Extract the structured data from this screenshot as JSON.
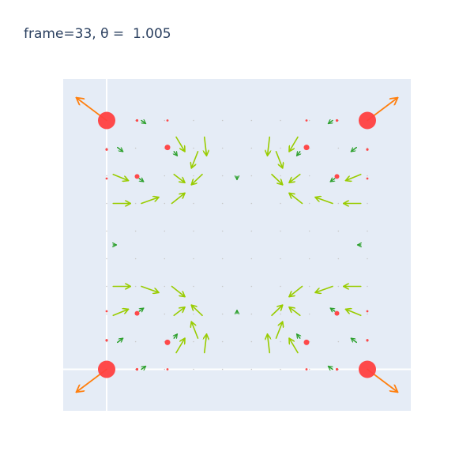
{
  "chart_data": {
    "type": "scatter",
    "title": "frame=33, θ =  1.005",
    "xlabel": "",
    "ylabel": "",
    "xlim": [
      -0.2,
      1.4
    ],
    "ylim": [
      -0.2,
      1.4
    ],
    "grid": false,
    "zero_lines": [
      0,
      1.2
    ],
    "legend": "none",
    "colors": {
      "plot_bg": "#e5ecf6",
      "points": "#ff4040",
      "corner_arrows": "#ff7f0e",
      "field_arrows_large": "#99cc00",
      "field_arrows_small": "#2ca02c",
      "grid_dots": "#c8c8c8"
    },
    "grid_points": {
      "x": [
        0,
        0.1333,
        0.2667,
        0.4,
        0.5333,
        0.6667,
        0.8,
        0.9333,
        1.0667,
        1.2
      ],
      "y": [
        0,
        0.1333,
        0.2667,
        0.4,
        0.5333,
        0.6667,
        0.8,
        0.9333,
        1.0667,
        1.2
      ]
    },
    "red_points": [
      {
        "x": 0,
        "y": 0,
        "size": 11
      },
      {
        "x": 1.2,
        "y": 0,
        "size": 11
      },
      {
        "x": 0,
        "y": 1.2,
        "size": 11
      },
      {
        "x": 1.2,
        "y": 1.2,
        "size": 11
      },
      {
        "x": 0.28,
        "y": 0.13,
        "size": 3.5
      },
      {
        "x": 0.92,
        "y": 0.13,
        "size": 3.5
      },
      {
        "x": 0.28,
        "y": 1.07,
        "size": 3.5
      },
      {
        "x": 0.92,
        "y": 1.07,
        "size": 3.5
      },
      {
        "x": 0.14,
        "y": 0.27,
        "size": 3
      },
      {
        "x": 1.06,
        "y": 0.27,
        "size": 3
      },
      {
        "x": 0.14,
        "y": 0.93,
        "size": 3
      },
      {
        "x": 1.06,
        "y": 0.93,
        "size": 3
      },
      {
        "x": 0.14,
        "y": 0,
        "size": 1.6
      },
      {
        "x": 1.06,
        "y": 0,
        "size": 1.6
      },
      {
        "x": 0.14,
        "y": 1.2,
        "size": 1.6
      },
      {
        "x": 1.06,
        "y": 1.2,
        "size": 1.6
      },
      {
        "x": 0,
        "y": 0.14,
        "size": 1.6
      },
      {
        "x": 1.2,
        "y": 0.14,
        "size": 1.6
      },
      {
        "x": 0,
        "y": 1.06,
        "size": 1.6
      },
      {
        "x": 1.2,
        "y": 1.06,
        "size": 1.6
      },
      {
        "x": 0.28,
        "y": 0,
        "size": 1.4
      },
      {
        "x": 0.92,
        "y": 0,
        "size": 1.4
      },
      {
        "x": 0.28,
        "y": 1.2,
        "size": 1.4
      },
      {
        "x": 0.92,
        "y": 1.2,
        "size": 1.4
      },
      {
        "x": 0,
        "y": 0.28,
        "size": 1.4
      },
      {
        "x": 1.2,
        "y": 0.28,
        "size": 1.4
      },
      {
        "x": 0,
        "y": 0.92,
        "size": 1.4
      },
      {
        "x": 1.2,
        "y": 0.92,
        "size": 1.4
      }
    ],
    "corner_arrows": [
      {
        "x": 0,
        "y": 1.2,
        "u": -0.14,
        "v": 0.11
      },
      {
        "x": 1.2,
        "y": 1.2,
        "u": 0.14,
        "v": 0.11
      },
      {
        "x": 0,
        "y": 0,
        "u": -0.14,
        "v": -0.11
      },
      {
        "x": 1.2,
        "y": 0,
        "u": 0.14,
        "v": -0.11
      }
    ],
    "field_arrows": [
      {
        "x": 0.32,
        "y": 1.12,
        "u": 0.04,
        "v": -0.07
      },
      {
        "x": 0.45,
        "y": 1.12,
        "u": 0.01,
        "v": -0.09
      },
      {
        "x": 0.75,
        "y": 1.12,
        "u": -0.01,
        "v": -0.09
      },
      {
        "x": 0.88,
        "y": 1.12,
        "u": -0.04,
        "v": -0.07
      },
      {
        "x": 0.78,
        "y": 1.05,
        "u": 0.03,
        "v": -0.08
      },
      {
        "x": 0.42,
        "y": 1.05,
        "u": -0.03,
        "v": -0.08
      },
      {
        "x": 0.03,
        "y": 0.94,
        "u": 0.07,
        "v": -0.03
      },
      {
        "x": 1.17,
        "y": 0.94,
        "u": -0.07,
        "v": -0.03
      },
      {
        "x": 0.31,
        "y": 0.94,
        "u": 0.05,
        "v": -0.04
      },
      {
        "x": 0.89,
        "y": 0.94,
        "u": -0.05,
        "v": -0.04
      },
      {
        "x": 0.76,
        "y": 0.94,
        "u": 0.05,
        "v": -0.05
      },
      {
        "x": 0.44,
        "y": 0.94,
        "u": -0.05,
        "v": -0.05
      },
      {
        "x": 0.03,
        "y": 0.8,
        "u": 0.08,
        "v": 0.0
      },
      {
        "x": 1.17,
        "y": 0.8,
        "u": -0.08,
        "v": 0.0
      },
      {
        "x": 0.16,
        "y": 0.8,
        "u": 0.08,
        "v": 0.03
      },
      {
        "x": 1.04,
        "y": 0.8,
        "u": -0.08,
        "v": 0.03
      },
      {
        "x": 0.3,
        "y": 0.8,
        "u": 0.06,
        "v": 0.05
      },
      {
        "x": 0.9,
        "y": 0.8,
        "u": -0.06,
        "v": 0.05
      },
      {
        "x": 0.03,
        "y": 0.4,
        "u": 0.08,
        "v": 0.0
      },
      {
        "x": 1.17,
        "y": 0.4,
        "u": -0.08,
        "v": 0.0
      },
      {
        "x": 0.16,
        "y": 0.4,
        "u": 0.08,
        "v": -0.03
      },
      {
        "x": 1.04,
        "y": 0.4,
        "u": -0.08,
        "v": -0.03
      },
      {
        "x": 0.3,
        "y": 0.4,
        "u": 0.06,
        "v": -0.05
      },
      {
        "x": 0.9,
        "y": 0.4,
        "u": -0.06,
        "v": -0.05
      },
      {
        "x": 0.03,
        "y": 0.26,
        "u": 0.07,
        "v": 0.03
      },
      {
        "x": 1.17,
        "y": 0.26,
        "u": -0.07,
        "v": 0.03
      },
      {
        "x": 0.31,
        "y": 0.26,
        "u": 0.05,
        "v": 0.04
      },
      {
        "x": 0.89,
        "y": 0.26,
        "u": -0.05,
        "v": 0.04
      },
      {
        "x": 0.76,
        "y": 0.26,
        "u": 0.05,
        "v": 0.05
      },
      {
        "x": 0.44,
        "y": 0.26,
        "u": -0.05,
        "v": 0.05
      },
      {
        "x": 0.78,
        "y": 0.15,
        "u": 0.03,
        "v": 0.08
      },
      {
        "x": 0.42,
        "y": 0.15,
        "u": -0.03,
        "v": 0.08
      },
      {
        "x": 0.32,
        "y": 0.08,
        "u": 0.04,
        "v": 0.07
      },
      {
        "x": 0.45,
        "y": 0.08,
        "u": 0.01,
        "v": 0.09
      },
      {
        "x": 0.75,
        "y": 0.08,
        "u": -0.01,
        "v": 0.09
      },
      {
        "x": 0.88,
        "y": 0.08,
        "u": -0.04,
        "v": 0.07
      }
    ],
    "small_arrows": [
      {
        "x": 0.05,
        "y": 1.07,
        "u": 0.025,
        "v": -0.02
      },
      {
        "x": 1.15,
        "y": 1.07,
        "u": -0.025,
        "v": -0.02
      },
      {
        "x": 0.05,
        "y": 0.13,
        "u": 0.025,
        "v": 0.02
      },
      {
        "x": 1.15,
        "y": 0.13,
        "u": -0.025,
        "v": 0.02
      },
      {
        "x": 0.16,
        "y": 1.2,
        "u": 0.02,
        "v": -0.015
      },
      {
        "x": 1.04,
        "y": 1.2,
        "u": -0.02,
        "v": -0.015
      },
      {
        "x": 0.16,
        "y": 0.0,
        "u": 0.02,
        "v": 0.015
      },
      {
        "x": 1.04,
        "y": 0.0,
        "u": -0.02,
        "v": 0.015
      },
      {
        "x": 0.31,
        "y": 1.05,
        "u": 0.015,
        "v": -0.02
      },
      {
        "x": 0.89,
        "y": 1.05,
        "u": -0.015,
        "v": -0.02
      },
      {
        "x": 0.31,
        "y": 0.15,
        "u": 0.015,
        "v": 0.02
      },
      {
        "x": 0.89,
        "y": 0.15,
        "u": -0.015,
        "v": 0.02
      },
      {
        "x": 1.05,
        "y": 0.92,
        "u": -0.02,
        "v": -0.015
      },
      {
        "x": 0.15,
        "y": 0.92,
        "u": 0.02,
        "v": -0.015
      },
      {
        "x": 1.05,
        "y": 0.28,
        "u": -0.02,
        "v": 0.015
      },
      {
        "x": 0.15,
        "y": 0.28,
        "u": 0.02,
        "v": 0.015
      },
      {
        "x": 0.6,
        "y": 0.93,
        "u": 0.0,
        "v": -0.015
      },
      {
        "x": 0.6,
        "y": 0.27,
        "u": 0.0,
        "v": 0.015
      },
      {
        "x": 0.03,
        "y": 0.6,
        "u": 0.015,
        "v": 0.0
      },
      {
        "x": 1.17,
        "y": 0.6,
        "u": -0.015,
        "v": 0.0
      }
    ]
  }
}
